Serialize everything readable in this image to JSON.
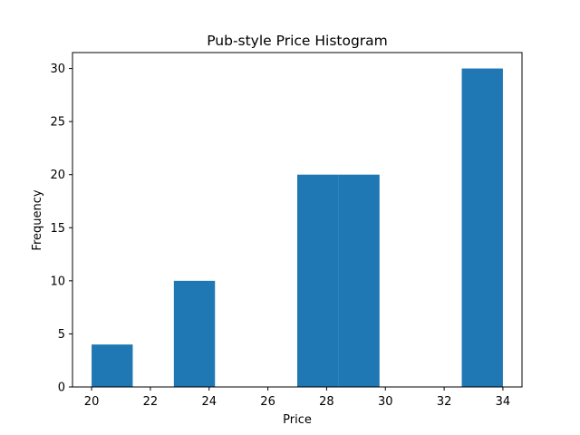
{
  "chart_data": {
    "type": "bar",
    "title": "Pub-style Price Histogram",
    "xlabel": "Price",
    "ylabel": "Frequency",
    "bar_color": "#1f77b4",
    "xlim": [
      19.35,
      34.65
    ],
    "ylim": [
      0,
      31.5
    ],
    "xticks": [
      20,
      22,
      24,
      26,
      28,
      30,
      32,
      34
    ],
    "yticks": [
      0,
      5,
      10,
      15,
      20,
      25,
      30
    ],
    "bins": [
      {
        "start": 20.0,
        "end": 21.4,
        "count": 4
      },
      {
        "start": 21.4,
        "end": 22.8,
        "count": 0
      },
      {
        "start": 22.8,
        "end": 24.2,
        "count": 10
      },
      {
        "start": 24.2,
        "end": 25.6,
        "count": 0
      },
      {
        "start": 25.6,
        "end": 27.0,
        "count": 0
      },
      {
        "start": 27.0,
        "end": 28.4,
        "count": 20
      },
      {
        "start": 28.4,
        "end": 29.8,
        "count": 20
      },
      {
        "start": 29.8,
        "end": 31.2,
        "count": 0
      },
      {
        "start": 31.2,
        "end": 32.6,
        "count": 0
      },
      {
        "start": 32.6,
        "end": 34.0,
        "count": 30
      }
    ],
    "grid": false,
    "legend": "none"
  }
}
